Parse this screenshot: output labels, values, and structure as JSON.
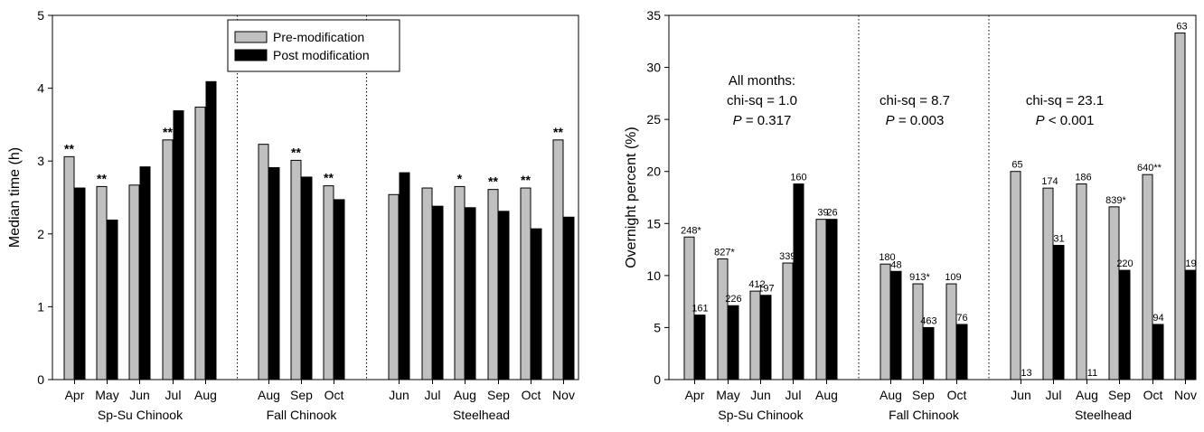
{
  "colors": {
    "pre": "#c0c0c0",
    "post": "#000000",
    "axis": "#000000"
  },
  "chart_data": [
    {
      "type": "bar",
      "ylabel": "Median time (h)",
      "ylim": [
        0,
        5
      ],
      "yticks": [
        0,
        1,
        2,
        3,
        4,
        5
      ],
      "legend": {
        "placement": "top-center",
        "entries": [
          "Pre-modification",
          "Post modification"
        ]
      },
      "groups": [
        {
          "name": "Sp-Su Chinook",
          "categories": [
            "Apr",
            "May",
            "Jun",
            "Jul",
            "Aug"
          ]
        },
        {
          "name": "Fall Chinook",
          "categories": [
            "Aug",
            "Sep",
            "Oct"
          ]
        },
        {
          "name": "Steelhead",
          "categories": [
            "Jun",
            "Jul",
            "Aug",
            "Sep",
            "Oct",
            "Nov"
          ]
        }
      ],
      "series": [
        {
          "name": "Pre-modification",
          "values": [
            3.06,
            2.65,
            2.67,
            3.29,
            3.74,
            3.23,
            3.01,
            2.66,
            2.54,
            2.63,
            2.65,
            2.61,
            2.63,
            3.29
          ]
        },
        {
          "name": "Post modification",
          "values": [
            2.63,
            2.19,
            2.92,
            3.69,
            4.09,
            2.91,
            2.78,
            2.47,
            2.84,
            2.38,
            2.36,
            2.31,
            2.07,
            2.23
          ]
        }
      ],
      "bar_labels": [
        [
          "**",
          ""
        ],
        [
          "**",
          ""
        ],
        [
          "",
          ""
        ],
        [
          "**",
          ""
        ],
        [
          "",
          ""
        ],
        [
          "",
          ""
        ],
        [
          "**",
          ""
        ],
        [
          "**",
          ""
        ],
        [
          "",
          ""
        ],
        [
          "",
          ""
        ],
        [
          "*",
          ""
        ],
        [
          "**",
          ""
        ],
        [
          "**",
          ""
        ],
        [
          "**",
          ""
        ]
      ]
    },
    {
      "type": "bar",
      "ylabel": "Overnight percent (%)",
      "ylim": [
        0,
        35
      ],
      "yticks": [
        0,
        5,
        10,
        15,
        20,
        25,
        30,
        35
      ],
      "groups": [
        {
          "name": "Sp-Su Chinook",
          "categories": [
            "Apr",
            "May",
            "Jun",
            "Jul",
            "Aug"
          ]
        },
        {
          "name": "Fall Chinook",
          "categories": [
            "Aug",
            "Sep",
            "Oct"
          ]
        },
        {
          "name": "Steelhead",
          "categories": [
            "Jun",
            "Jul",
            "Aug",
            "Sep",
            "Oct",
            "Nov"
          ]
        }
      ],
      "series": [
        {
          "name": "Pre-modification",
          "values": [
            13.7,
            11.6,
            8.5,
            11.2,
            15.4,
            11.1,
            9.2,
            9.2,
            20.0,
            18.4,
            18.8,
            16.6,
            19.7,
            33.3
          ]
        },
        {
          "name": "Post modification",
          "values": [
            6.2,
            7.1,
            8.1,
            18.8,
            15.4,
            10.4,
            5.0,
            5.3,
            0,
            12.9,
            0,
            10.5,
            5.3,
            10.5
          ]
        }
      ],
      "bar_labels": [
        [
          "248*",
          "161"
        ],
        [
          "827*",
          "226"
        ],
        [
          "412",
          "197"
        ],
        [
          "339*",
          "160"
        ],
        [
          "39",
          "26"
        ],
        [
          "180",
          "48"
        ],
        [
          "913*",
          "463"
        ],
        [
          "109",
          "76"
        ],
        [
          "65",
          "13"
        ],
        [
          "174",
          "31"
        ],
        [
          "186",
          "11"
        ],
        [
          "839*",
          "220"
        ],
        [
          "640**",
          "94"
        ],
        [
          "63",
          "19"
        ]
      ],
      "annotations": [
        {
          "lines": [
            "All months:",
            "chi-sq = 1.0",
            "P = 0.317"
          ]
        },
        {
          "lines": [
            "chi-sq = 8.7",
            "P = 0.003"
          ]
        },
        {
          "lines": [
            "chi-sq = 23.1",
            "P < 0.001"
          ]
        }
      ]
    }
  ]
}
